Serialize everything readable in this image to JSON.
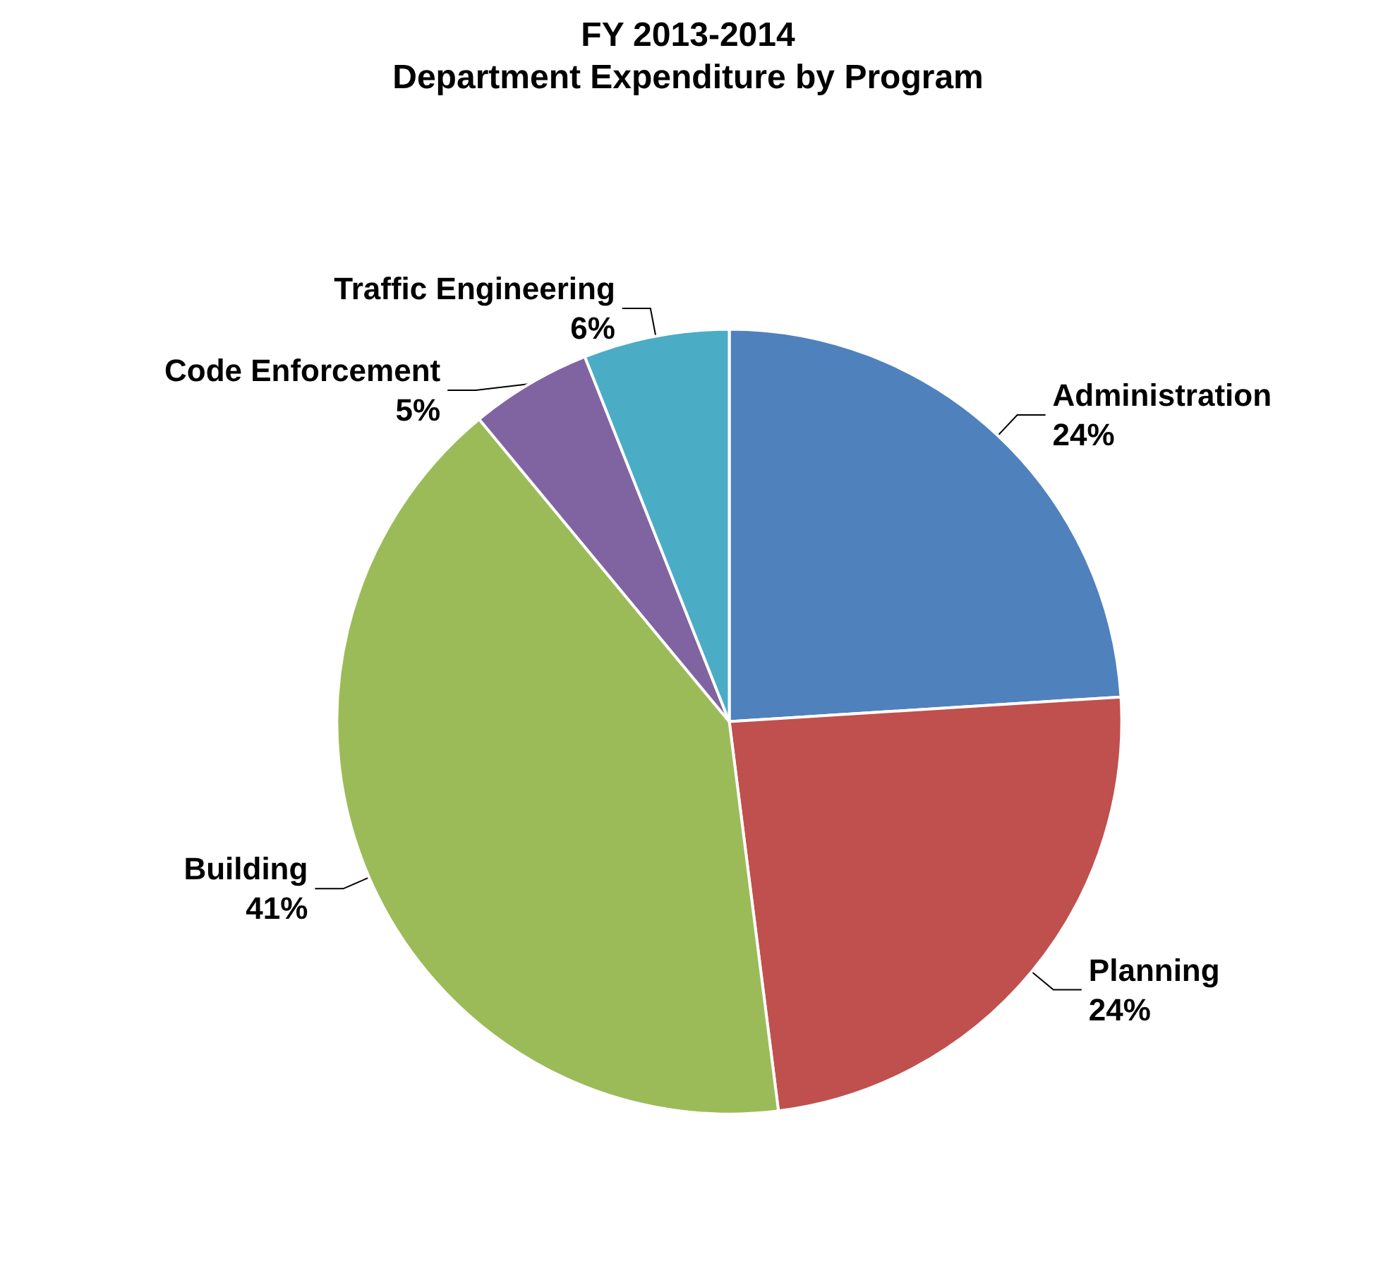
{
  "chart_data": {
    "type": "pie",
    "title": "FY 2013-2014\nDepartment Expenditure by Program",
    "categories": [
      "Administration",
      "Planning",
      "Building",
      "Code Enforcement",
      "Traffic Engineering"
    ],
    "values": [
      24,
      24,
      41,
      5,
      6
    ],
    "value_labels": [
      "24%",
      "24%",
      "41%",
      "5%",
      "6%"
    ],
    "colors": [
      "#4f81bd",
      "#c0504d",
      "#9bbb59",
      "#8064a2",
      "#4bacc6"
    ],
    "legend": false
  }
}
